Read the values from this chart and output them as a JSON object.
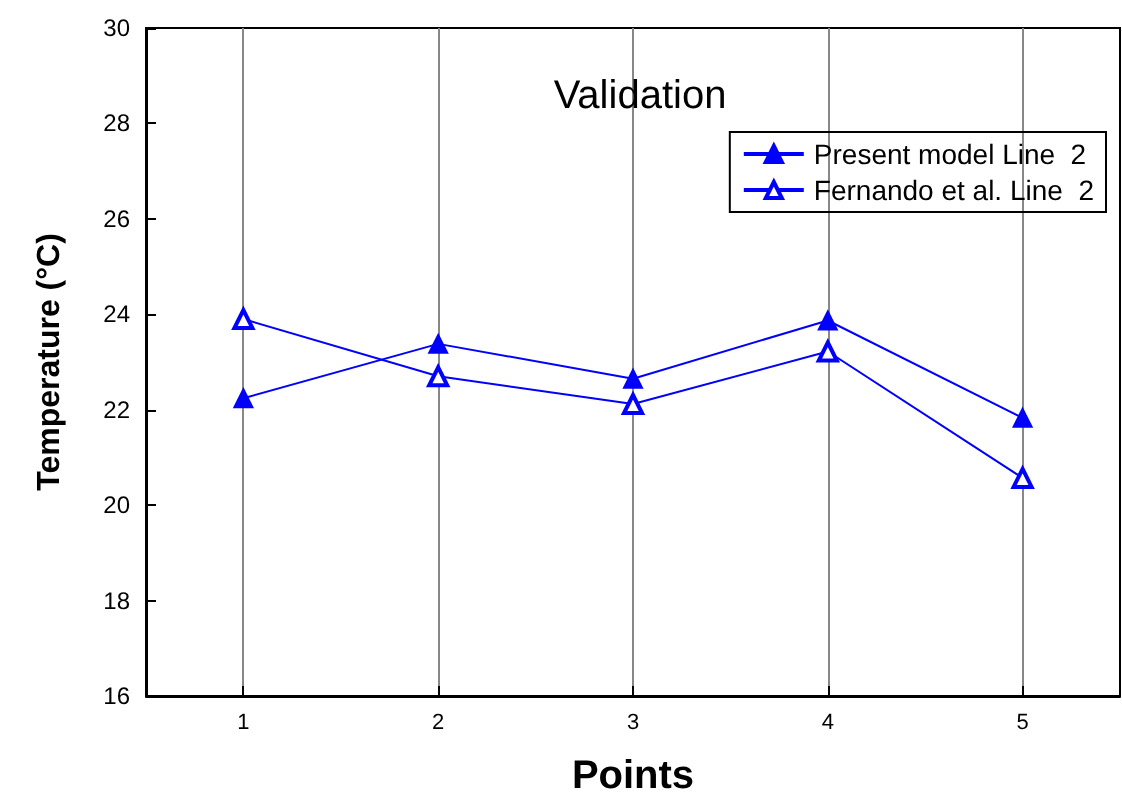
{
  "chart_data": {
    "type": "line",
    "title": "Validation",
    "xlabel": "Points",
    "ylabel": "Temperature (°C)",
    "x": [
      1,
      2,
      3,
      4,
      5
    ],
    "series": [
      {
        "name": "Present model Line  2",
        "color": "#0000ff",
        "values": [
          22.24,
          23.38,
          22.65,
          23.87,
          21.83
        ]
      },
      {
        "name": "Fernando et al. Line  2",
        "color": "#0000ff",
        "values": [
          23.9,
          22.7,
          22.12,
          23.22,
          20.57
        ]
      }
    ],
    "xlim": [
      0.5,
      5.5
    ],
    "xticks": [
      1,
      2,
      3,
      4,
      5
    ],
    "ylim": [
      16,
      30
    ],
    "yticks": [
      16,
      18,
      20,
      22,
      24,
      26,
      28,
      30
    ],
    "grid": "x",
    "legend": "top right",
    "marker": "triangle",
    "line_style": "solid"
  }
}
